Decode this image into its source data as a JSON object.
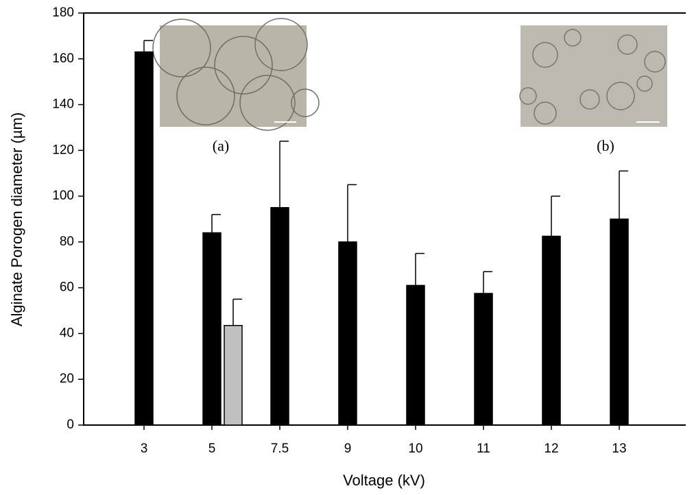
{
  "chart_data": {
    "type": "bar",
    "xlabel": "Voltage (kV)",
    "ylabel": "Alginate Porogen diameter (µm)",
    "categories": [
      "3",
      "5",
      "7.5",
      "9",
      "10",
      "11",
      "12",
      "13"
    ],
    "series": [
      {
        "color": "#000000",
        "values": [
          163,
          84,
          95,
          80,
          61,
          57.5,
          82.5,
          90
        ],
        "errors": [
          5,
          8,
          29,
          25,
          14,
          9.5,
          17.5,
          21
        ]
      },
      {
        "color": "#c0c0c0",
        "values": [
          null,
          43.5,
          null,
          null,
          null,
          null,
          null,
          null
        ],
        "errors": [
          null,
          11.5,
          null,
          null,
          null,
          null,
          null,
          null
        ]
      }
    ],
    "ylim": [
      0,
      180
    ],
    "yticks": [
      0,
      20,
      40,
      60,
      80,
      100,
      120,
      140,
      160,
      180
    ],
    "annotations": [
      "(a)",
      "(b)"
    ]
  }
}
